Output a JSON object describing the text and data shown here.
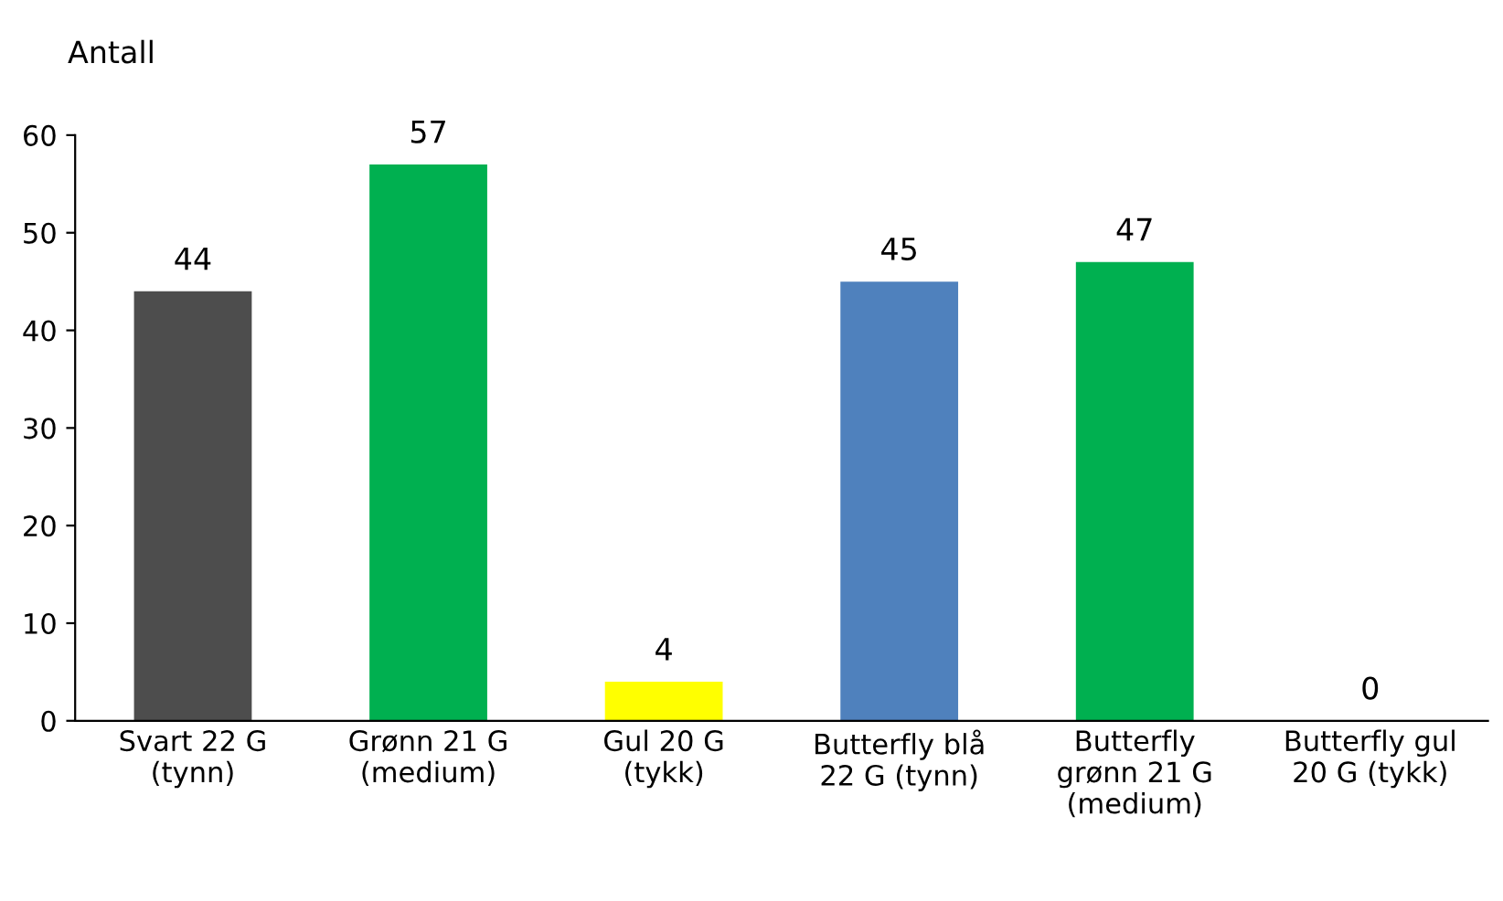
{
  "chart_data": {
    "type": "bar",
    "ylabel": "Antall",
    "categories": [
      "Svart 22 G\n(tynn)",
      "Grønn 21 G\n(medium)",
      "Gul 20 G\n(tykk)",
      "Butterfly blå\n22 G (tynn)",
      "Butterfly\ngrønn 21 G\n(medium)",
      "Butterfly gul\n20 G (tykk)"
    ],
    "values": [
      44,
      57,
      4,
      45,
      47,
      0
    ],
    "colors": [
      "#4d4d4d",
      "#00b050",
      "#ffff00",
      "#4f81bd",
      "#00b050",
      "#00b050"
    ],
    "ylim": [
      0,
      60
    ],
    "yticks": [
      0,
      10,
      20,
      30,
      40,
      50,
      60
    ],
    "data_labels": true,
    "grid": false,
    "legend": false
  }
}
